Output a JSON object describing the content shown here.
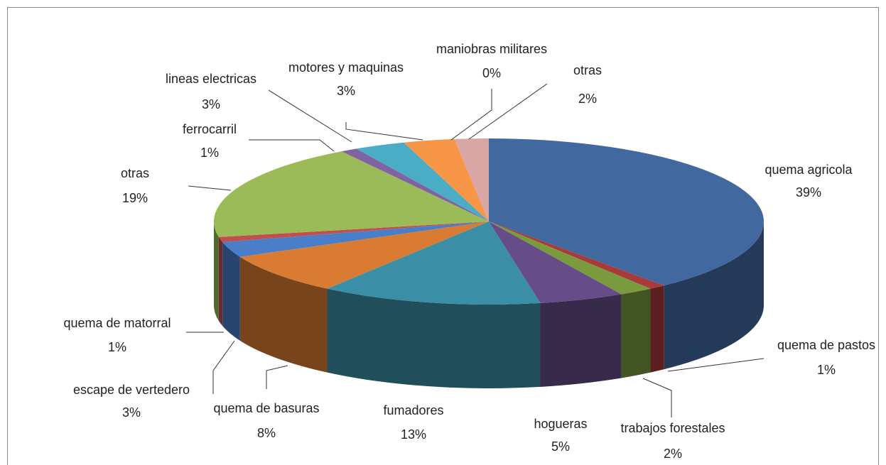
{
  "chart_data": {
    "type": "pie3d",
    "categories": [
      "quema agricola",
      "quema de pastos",
      "trabajos forestales",
      "hogueras",
      "fumadores",
      "quema de basuras",
      "escape de vertedero",
      "quema de matorral",
      "otras",
      "ferrocarril",
      "lineas electricas",
      "motores y maquinas",
      "maniobras militares",
      "otras"
    ],
    "values": [
      39,
      1,
      2,
      5,
      13,
      8,
      3,
      1,
      19,
      1,
      3,
      3,
      0,
      2
    ],
    "value_labels": [
      "39%",
      "1%",
      "2%",
      "5%",
      "13%",
      "8%",
      "3%",
      "1%",
      "19%",
      "1%",
      "3%",
      "3%",
      "0%",
      "2%"
    ],
    "colors": [
      "#4169a0",
      "#a83a3a",
      "#7a9a3e",
      "#664c88",
      "#3a8ea5",
      "#d97b33",
      "#4a7ec8",
      "#c0504d",
      "#9bbb59",
      "#8064a2",
      "#4bacc6",
      "#f79646",
      "#2c4d75",
      "#d9a5a5"
    ]
  }
}
